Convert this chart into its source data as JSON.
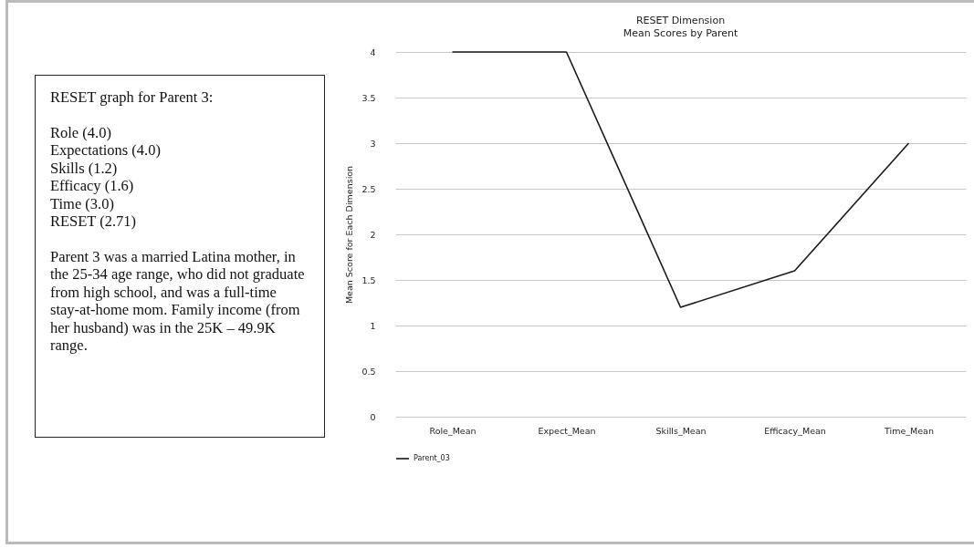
{
  "chart_data": {
    "type": "line",
    "title": "RESET Dimension",
    "subtitle": "Mean Scores by Parent",
    "ylabel": "Mean Score for Each Dimension",
    "categories": [
      "Role_Mean",
      "Expect_Mean",
      "Skills_Mean",
      "Efficacy_Mean",
      "Time_Mean"
    ],
    "series": [
      {
        "name": "Parent_03",
        "color": "#1a1a1a",
        "values": [
          4.0,
          4.0,
          1.2,
          1.6,
          3.0
        ]
      }
    ],
    "ylim": [
      0,
      4
    ],
    "yticks": [
      0,
      0.5,
      1,
      1.5,
      2,
      2.5,
      3,
      3.5,
      4
    ],
    "grid": "y",
    "legend": "bottom",
    "marker": "none",
    "line_style": "solid",
    "annotations": [
      "RESET graph for Parent 3:",
      "Role (4.0)\nExpectations (4.0)\nSkills (1.2)\nEfficacy (1.6)\nTime (3.0)\nRESET (2.71)",
      "Parent 3 was a married Latina mother, in the 25-34 age range, who did not graduate from high school, and was a full-time stay-at-home mom. Family income (from her husband) was in the 25K – 49.9K range."
    ]
  }
}
